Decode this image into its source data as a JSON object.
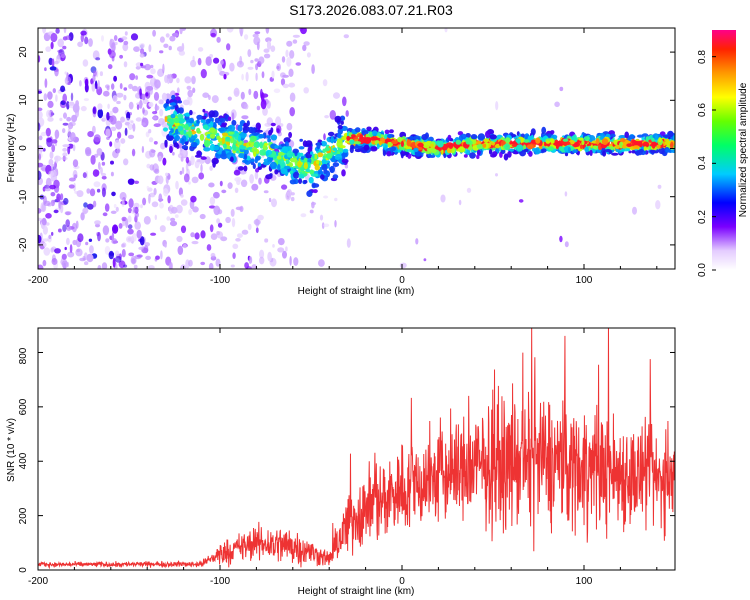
{
  "title": "S173.2026.083.07.21.R03",
  "chart_data": [
    {
      "type": "heatmap",
      "xlabel": "Height of straight line (km)",
      "ylabel": "Frequency (Hz)",
      "xlim": [
        -200,
        150
      ],
      "ylim": [
        -25,
        25
      ],
      "xticks": [
        "-200",
        "-100",
        "0",
        "100"
      ],
      "yticks": [
        "-20",
        "-10",
        "0",
        "10",
        "20"
      ],
      "colorbar": {
        "label": "Normalized spectral amplitude",
        "range": [
          0,
          0.9
        ],
        "ticks": [
          "0.0",
          "0.2",
          "0.4",
          "0.6",
          "0.8"
        ]
      },
      "ridge": [
        {
          "x": -130,
          "y": 6
        },
        {
          "x": -110,
          "y": 3
        },
        {
          "x": -90,
          "y": 1
        },
        {
          "x": -70,
          "y": -1
        },
        {
          "x": -60,
          "y": -3
        },
        {
          "x": -50,
          "y": -4
        },
        {
          "x": -40,
          "y": -1
        },
        {
          "x": -30,
          "y": 2
        },
        {
          "x": -20,
          "y": 2
        },
        {
          "x": 0,
          "y": 1
        },
        {
          "x": 20,
          "y": 0
        },
        {
          "x": 40,
          "y": 1
        },
        {
          "x": 60,
          "y": 1
        },
        {
          "x": 80,
          "y": 1
        },
        {
          "x": 100,
          "y": 1
        },
        {
          "x": 120,
          "y": 1
        },
        {
          "x": 150,
          "y": 1
        }
      ]
    },
    {
      "type": "line",
      "xlabel": "Height of straight line (km)",
      "ylabel": "SNR (10 * v/v)",
      "xlim": [
        -200,
        150
      ],
      "ylim": [
        0,
        890
      ],
      "xticks": [
        "-200",
        "-100",
        "0",
        "100"
      ],
      "yticks": [
        "0",
        "200",
        "400",
        "600",
        "800"
      ],
      "color": "#ee3333",
      "envelope": [
        {
          "x": -200,
          "mean": 20,
          "spread": 8
        },
        {
          "x": -110,
          "mean": 22,
          "spread": 10
        },
        {
          "x": -100,
          "mean": 60,
          "spread": 40
        },
        {
          "x": -80,
          "mean": 100,
          "spread": 60
        },
        {
          "x": -60,
          "mean": 90,
          "spread": 70
        },
        {
          "x": -40,
          "mean": 40,
          "spread": 25
        },
        {
          "x": -30,
          "mean": 170,
          "spread": 110
        },
        {
          "x": -20,
          "mean": 230,
          "spread": 130
        },
        {
          "x": 0,
          "mean": 300,
          "spread": 160
        },
        {
          "x": 20,
          "mean": 340,
          "spread": 170
        },
        {
          "x": 40,
          "mean": 380,
          "spread": 200
        },
        {
          "x": 80,
          "mean": 400,
          "spread": 230
        },
        {
          "x": 100,
          "mean": 380,
          "spread": 220
        },
        {
          "x": 150,
          "mean": 320,
          "spread": 160
        }
      ]
    }
  ]
}
